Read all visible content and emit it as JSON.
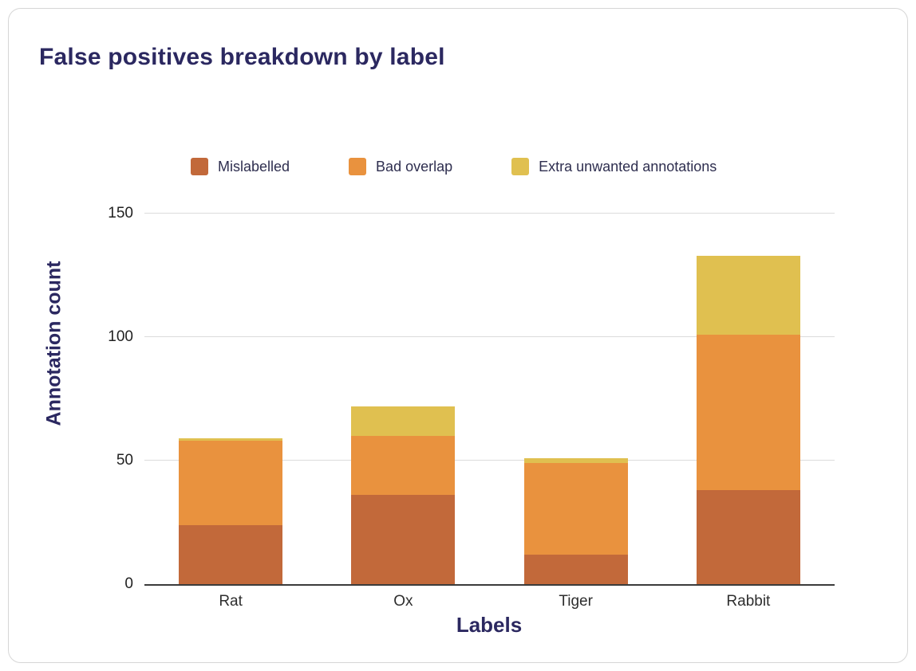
{
  "chart_data": {
    "type": "bar",
    "stacked": true,
    "title": "False positives breakdown by label",
    "xlabel": "Labels",
    "ylabel": "Annotation count",
    "categories": [
      "Rat",
      "Ox",
      "Tiger",
      "Rabbit"
    ],
    "series": [
      {
        "name": "Mislabelled",
        "color": "#c2693a",
        "values": [
          24,
          36,
          12,
          38
        ]
      },
      {
        "name": "Bad overlap",
        "color": "#e9923e",
        "values": [
          34,
          24,
          37,
          63
        ]
      },
      {
        "name": "Extra unwanted annotations",
        "color": "#e0c050",
        "values": [
          1,
          12,
          2,
          32
        ]
      }
    ],
    "ylim": [
      0,
      150
    ],
    "yticks": [
      0,
      50,
      100,
      150
    ],
    "grid": true,
    "legend_position": "top",
    "colors": {
      "title_text": "#2b2860",
      "axis_title_text": "#2b2860",
      "tick_text": "#222222",
      "gridline": "#dcdcdc",
      "baseline": "#3b3b3b",
      "card_border": "#d6d6d6",
      "background": "#ffffff"
    }
  }
}
